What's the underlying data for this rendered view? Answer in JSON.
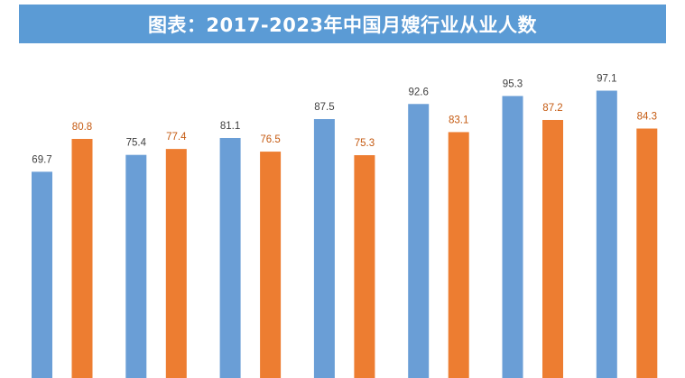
{
  "title": "图表：2017-2023年中国月嫂行业从业人数",
  "colors": {
    "title_bg": "#5b9bd5",
    "series_1": "#6a9ed6",
    "series_2": "#ed7d31",
    "label_1": "#404040",
    "label_2": "#c55a11"
  },
  "chart_data": {
    "type": "bar",
    "title": "图表：2017-2023年中国月嫂行业从业人数",
    "categories": [
      "",
      "",
      "",
      "",
      "",
      "",
      ""
    ],
    "series": [
      {
        "values": [
          69.7,
          75.4,
          81.1,
          87.5,
          92.6,
          95.3,
          97.1
        ]
      },
      {
        "values": [
          80.8,
          77.4,
          76.5,
          75.3,
          83.1,
          87.2,
          84.3
        ]
      }
    ],
    "xlabel": "",
    "ylabel": "",
    "grid": false,
    "data_labels": true
  }
}
